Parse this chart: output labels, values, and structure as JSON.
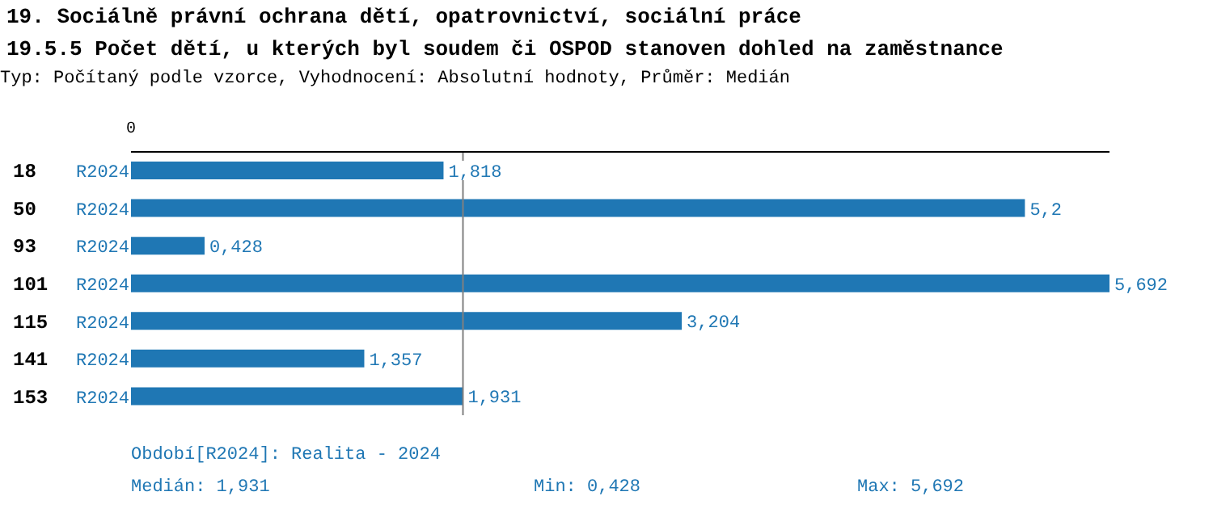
{
  "chart_data": {
    "type": "bar",
    "orientation": "horizontal",
    "title": "19. Sociálně právní ochrana dětí, opatrovnictví, sociální práce",
    "subtitle": "19.5.5 Počet dětí, u kterých byl soudem či OSPOD stanoven dohled na zaměstnance",
    "categories": [
      "18",
      "50",
      "93",
      "101",
      "115",
      "141",
      "153"
    ],
    "series": [
      {
        "name": "R2024",
        "color": "#1f77b4",
        "values": [
          1.818,
          5.2,
          0.428,
          5.692,
          3.204,
          1.357,
          1.931
        ],
        "value_labels": [
          "1,818",
          "5,2",
          "0,428",
          "5,692",
          "3,204",
          "1,357",
          "1,931"
        ]
      }
    ],
    "ref_lines": [
      {
        "axis": "x",
        "value": 1.931,
        "color": "#808080"
      }
    ],
    "annotations": [
      "Typ: Počítaný podle vzorce, Vyhodnocení: Absolutní hodnoty, Průměr: Medián",
      "0",
      "Období[R2024]: Realita - 2024",
      "Medián: 1,931",
      "Min: 0,428",
      "Max: 5,692"
    ],
    "grid": false,
    "legend": false
  }
}
